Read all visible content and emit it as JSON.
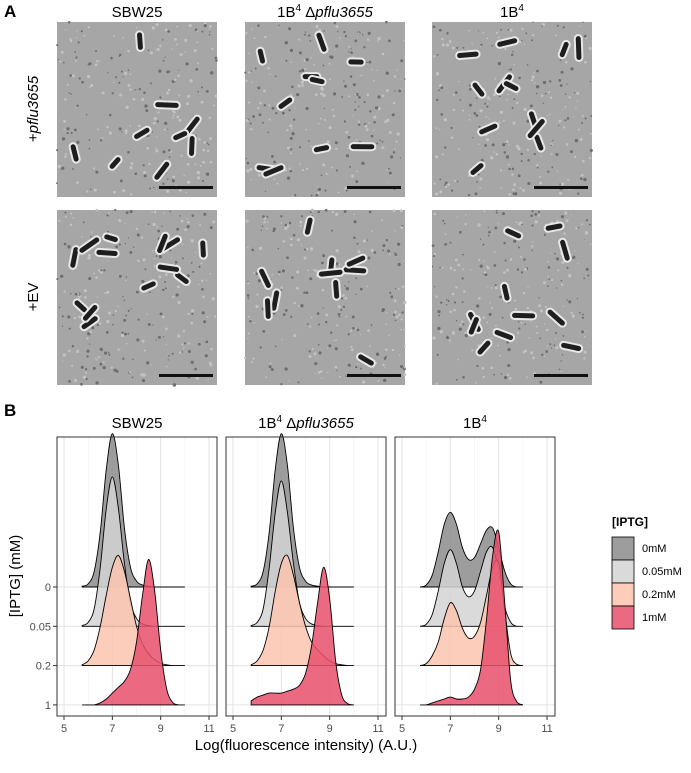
{
  "panel_a": {
    "label": "A",
    "columns": [
      [
        "SBW25"
      ],
      [
        "1B",
        "4",
        " Δ",
        "pflu3655"
      ],
      [
        "1B",
        "4"
      ]
    ],
    "rows": [
      [
        "+",
        "pflu3655"
      ],
      [
        "+EV"
      ]
    ]
  },
  "chart_data": {
    "type": "ridgeline",
    "label": "B",
    "x_label": "Log(fluorescence intensity) (A.U.)",
    "y_label": "[IPTG] (mM)",
    "xlim": [
      4.71,
      11.33
    ],
    "xticks": [
      5,
      7,
      9,
      11
    ],
    "grid": true,
    "categories": [
      "0",
      "0.05",
      "0.2",
      "1"
    ],
    "x": [
      5.75,
      6,
      6.25,
      6.5,
      6.75,
      7,
      7.25,
      7.5,
      7.75,
      8,
      8.25,
      8.5,
      8.75,
      9,
      9.25,
      9.5,
      9.75,
      10
    ],
    "legend": {
      "title": "[IPTG]",
      "position": "right"
    },
    "panels": [
      {
        "title_parts": [
          "SBW25"
        ],
        "series": [
          {
            "name": "0mM",
            "color": "#8c8c8c",
            "values": [
              0.02,
              0.08,
              0.4,
              1.4,
              3.0,
              3.9,
              3.1,
              1.5,
              0.5,
              0.15,
              0.05,
              0.02,
              0,
              0,
              0,
              0,
              0,
              0
            ]
          },
          {
            "name": "0.05mM",
            "color": "#d4d4d4",
            "values": [
              0.02,
              0.1,
              0.45,
              1.5,
              3.0,
              3.8,
              3.0,
              1.6,
              0.6,
              0.2,
              0.06,
              0.02,
              0,
              0,
              0,
              0,
              0,
              0
            ]
          },
          {
            "name": "0.2mM",
            "color": "#fbc4ae",
            "values": [
              0.02,
              0.12,
              0.4,
              1.0,
              1.8,
              2.5,
              2.8,
              2.4,
              1.7,
              1.0,
              0.55,
              0.3,
              0.15,
              0.06,
              0.02,
              0,
              0,
              0
            ]
          },
          {
            "name": "1mM",
            "color": "#e8506c",
            "values": [
              0,
              0,
              0,
              0.05,
              0.15,
              0.3,
              0.45,
              0.6,
              0.9,
              1.6,
              2.8,
              3.7,
              2.9,
              1.4,
              0.4,
              0.06,
              0,
              0
            ]
          }
        ]
      },
      {
        "title_parts": [
          "1B",
          "4",
          " Δ",
          "pflu3655"
        ],
        "series": [
          {
            "name": "0mM",
            "color": "#8c8c8c",
            "values": [
              0.02,
              0.08,
              0.4,
              1.4,
              3.0,
              3.9,
              3.1,
              1.5,
              0.5,
              0.15,
              0.05,
              0.02,
              0,
              0,
              0,
              0,
              0,
              0
            ]
          },
          {
            "name": "0.05mM",
            "color": "#d4d4d4",
            "values": [
              0.02,
              0.1,
              0.45,
              1.5,
              2.9,
              3.7,
              2.9,
              1.6,
              0.6,
              0.2,
              0.06,
              0.02,
              0,
              0,
              0,
              0,
              0,
              0
            ]
          },
          {
            "name": "0.2mM",
            "color": "#fbc4ae",
            "values": [
              0.02,
              0.12,
              0.4,
              1.0,
              1.9,
              2.6,
              2.8,
              2.3,
              1.6,
              1.0,
              0.6,
              0.4,
              0.25,
              0.12,
              0.05,
              0.02,
              0,
              0
            ]
          },
          {
            "name": "1mM",
            "color": "#e8506c",
            "values": [
              0.1,
              0.2,
              0.25,
              0.3,
              0.3,
              0.3,
              0.35,
              0.4,
              0.5,
              0.8,
              1.5,
              2.6,
              3.5,
              2.7,
              1.1,
              0.25,
              0.03,
              0
            ]
          }
        ]
      },
      {
        "title_parts": [
          "1B",
          "4"
        ],
        "series": [
          {
            "name": "0mM",
            "color": "#8c8c8c",
            "values": [
              0,
              0.05,
              0.3,
              0.9,
              1.6,
              1.9,
              1.6,
              1.0,
              0.7,
              0.75,
              1.1,
              1.45,
              1.5,
              1.0,
              0.4,
              0.08,
              0,
              0
            ]
          },
          {
            "name": "0.05mM",
            "color": "#d4d4d4",
            "values": [
              0,
              0.05,
              0.3,
              0.9,
              1.6,
              1.95,
              1.6,
              1.0,
              0.75,
              0.9,
              1.4,
              1.9,
              2.0,
              1.4,
              0.5,
              0.1,
              0,
              0
            ]
          },
          {
            "name": "0.2mM",
            "color": "#fbc4ae",
            "values": [
              0,
              0.05,
              0.25,
              0.6,
              1.2,
              1.6,
              1.4,
              0.95,
              0.7,
              0.75,
              1.1,
              1.8,
              2.5,
              2.6,
              1.4,
              0.3,
              0.03,
              0
            ]
          },
          {
            "name": "1mM",
            "color": "#e8506c",
            "values": [
              0,
              0,
              0.05,
              0.1,
              0.15,
              0.2,
              0.15,
              0.15,
              0.2,
              0.4,
              0.9,
              2.2,
              3.8,
              4.4,
              2.6,
              0.6,
              0.08,
              0
            ]
          }
        ]
      }
    ]
  }
}
